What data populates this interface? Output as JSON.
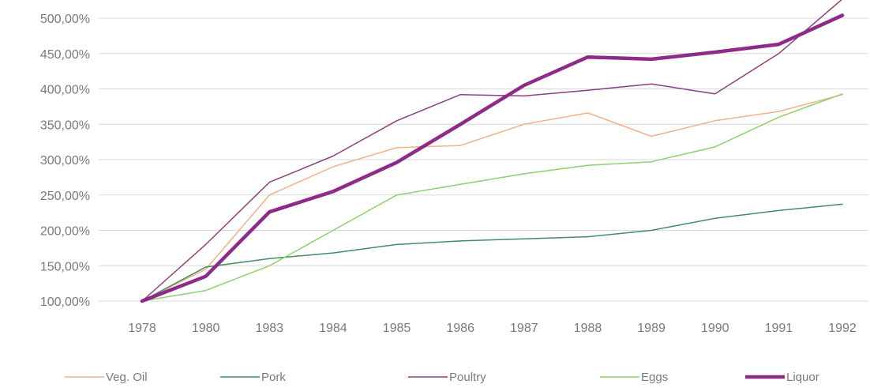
{
  "chart_data": {
    "type": "line",
    "title": "",
    "xlabel": "",
    "ylabel": "",
    "categories": [
      "1978",
      "1980",
      "1983",
      "1984",
      "1985",
      "1986",
      "1987",
      "1988",
      "1989",
      "1990",
      "1991",
      "1992"
    ],
    "y_ticks": [
      "100,00%",
      "150,00%",
      "200,00%",
      "250,00%",
      "300,00%",
      "350,00%",
      "400,00%",
      "450,00%",
      "500,00%"
    ],
    "ylim": [
      100,
      500
    ],
    "grid": true,
    "legend_position": "bottom",
    "series": [
      {
        "name": "Veg. Oil",
        "color": "#f4b183",
        "width": 1.5,
        "values": [
          100,
          145,
          250,
          290,
          317,
          320,
          350,
          366,
          333,
          355,
          368,
          392
        ]
      },
      {
        "name": "Pork",
        "color": "#3e8e66",
        "width": 1.5,
        "values": [
          100,
          148,
          160,
          168,
          180,
          185,
          188,
          191,
          200,
          217,
          228,
          237
        ]
      },
      {
        "name": "Poultry",
        "color": "#8e3f80",
        "width": 1.5,
        "values": [
          100,
          180,
          268,
          305,
          355,
          392,
          390,
          398,
          407,
          393,
          450,
          527
        ]
      },
      {
        "name": "Eggs",
        "color": "#8ed16b",
        "width": 1.5,
        "values": [
          100,
          115,
          150,
          200,
          250,
          265,
          280,
          292,
          297,
          318,
          360,
          393
        ]
      },
      {
        "name": "Liquor",
        "color": "#8e2a8a",
        "width": 4.5,
        "values": [
          100,
          135,
          226,
          255,
          296,
          350,
          405,
          445,
          442,
          452,
          463,
          504
        ]
      }
    ]
  }
}
